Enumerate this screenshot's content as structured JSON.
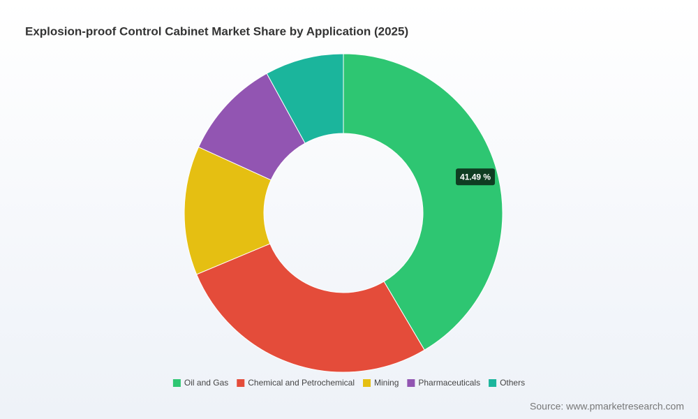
{
  "chart_data": {
    "type": "donut",
    "title": "Explosion-proof Control Cabinet Market Share by Application (2025)",
    "categories": [
      "Oil and Gas",
      "Chemical and Petrochemical",
      "Mining",
      "Pharmaceuticals",
      "Others"
    ],
    "values": [
      41.49,
      27.2,
      13.1,
      10.2,
      8.0
    ],
    "value_labels": [
      "41.49 %",
      null,
      null,
      null,
      null
    ],
    "colors": [
      "#2ec672",
      "#e44c3a",
      "#e5bf12",
      "#9255b2",
      "#1bb59c"
    ],
    "legend": "bottom",
    "source": "Source: www.pmarketresearch.com"
  }
}
